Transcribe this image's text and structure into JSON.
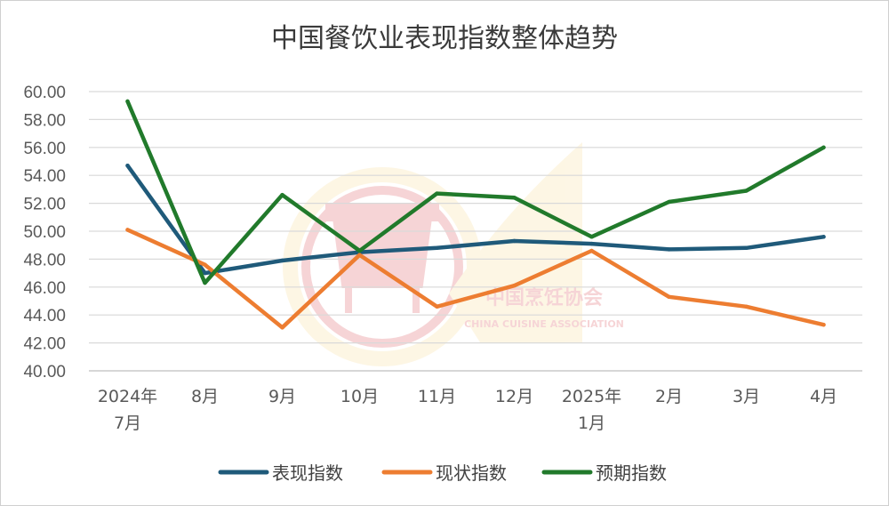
{
  "chart_data": {
    "type": "line",
    "title": "中国餐饮业表现指数整体趋势",
    "categories": [
      [
        "2024年",
        "7月"
      ],
      [
        "8月"
      ],
      [
        "9月"
      ],
      [
        "10月"
      ],
      [
        "11月"
      ],
      [
        "12月"
      ],
      [
        "2025年",
        "1月"
      ],
      [
        "2月"
      ],
      [
        "3月"
      ],
      [
        "4月"
      ]
    ],
    "series": [
      {
        "name": "表现指数",
        "color": "#1f5a7a",
        "values": [
          54.7,
          47.0,
          47.9,
          48.5,
          48.8,
          49.3,
          49.1,
          48.7,
          48.8,
          49.6
        ]
      },
      {
        "name": "现状指数",
        "color": "#ed7d31",
        "values": [
          50.1,
          47.6,
          43.1,
          48.3,
          44.6,
          46.1,
          48.6,
          45.3,
          44.6,
          43.3
        ]
      },
      {
        "name": "预期指数",
        "color": "#217a2b",
        "values": [
          59.3,
          46.3,
          52.6,
          48.6,
          52.7,
          52.4,
          49.6,
          52.1,
          52.9,
          56.0
        ]
      }
    ],
    "ylim": [
      40,
      60
    ],
    "yticks": [
      "40.00",
      "42.00",
      "44.00",
      "46.00",
      "48.00",
      "50.00",
      "52.00",
      "54.00",
      "56.00",
      "58.00",
      "60.00"
    ],
    "grid": true,
    "legend_position": "bottom"
  },
  "watermark": {
    "name": "中国烹饪协会",
    "subname": "CHINA CUISINE ASSOCIATION"
  }
}
